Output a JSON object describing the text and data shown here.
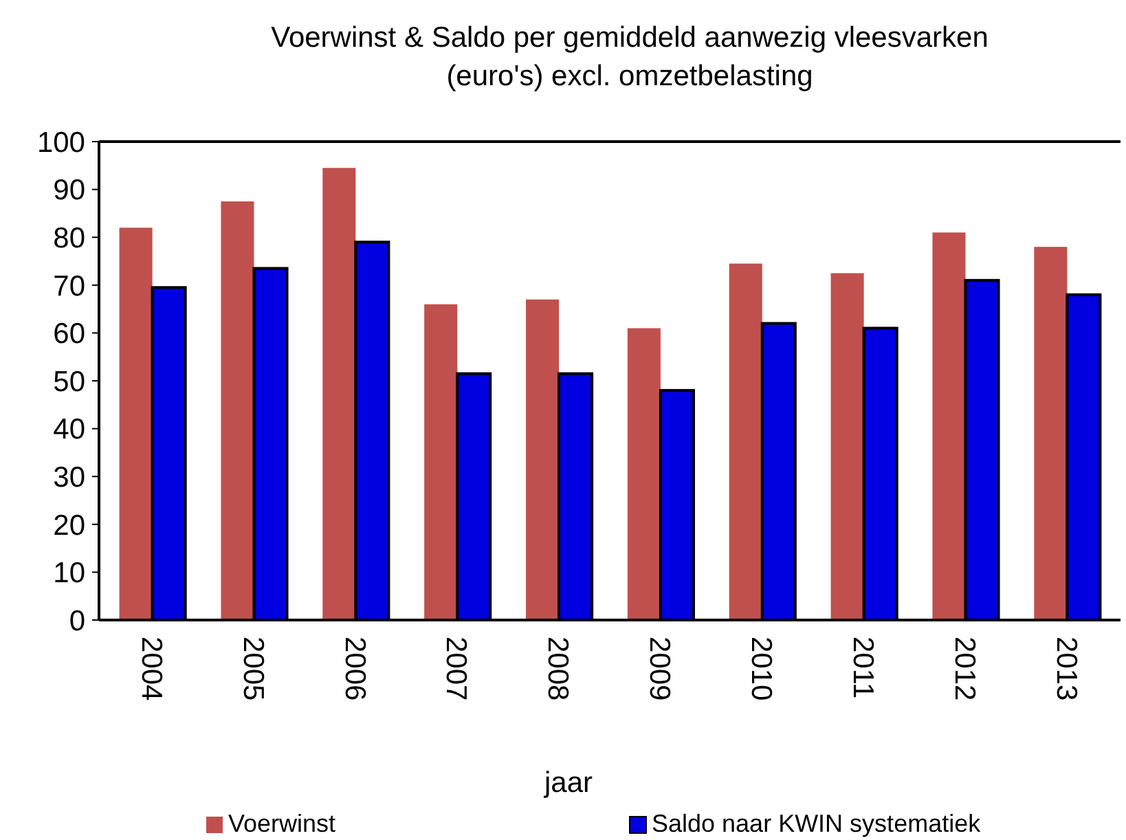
{
  "chart_data": {
    "type": "bar",
    "title": "Voerwinst & Saldo per gemiddeld aanwezig vleesvarken\n(euro's) excl. omzetbelasting",
    "xlabel": "jaar",
    "categories": [
      "2004",
      "2005",
      "2006",
      "2007",
      "2008",
      "2009",
      "2010",
      "2011",
      "2012",
      "2013"
    ],
    "series": [
      {
        "name": "Voerwinst",
        "color": "#c0504d",
        "values": [
          82,
          87.5,
          94.5,
          66,
          67,
          61,
          74.5,
          72.5,
          81,
          78
        ]
      },
      {
        "name": "Saldo naar KWIN systematiek",
        "color": "#0000e0",
        "values": [
          69.5,
          73.5,
          79,
          51.5,
          51.5,
          48,
          62,
          61,
          71,
          68
        ]
      }
    ],
    "ylim": [
      0,
      100
    ],
    "yticks": [
      0,
      10,
      20,
      30,
      40,
      50,
      60,
      70,
      80,
      90,
      100
    ],
    "grid": false,
    "legend": "bottom"
  }
}
